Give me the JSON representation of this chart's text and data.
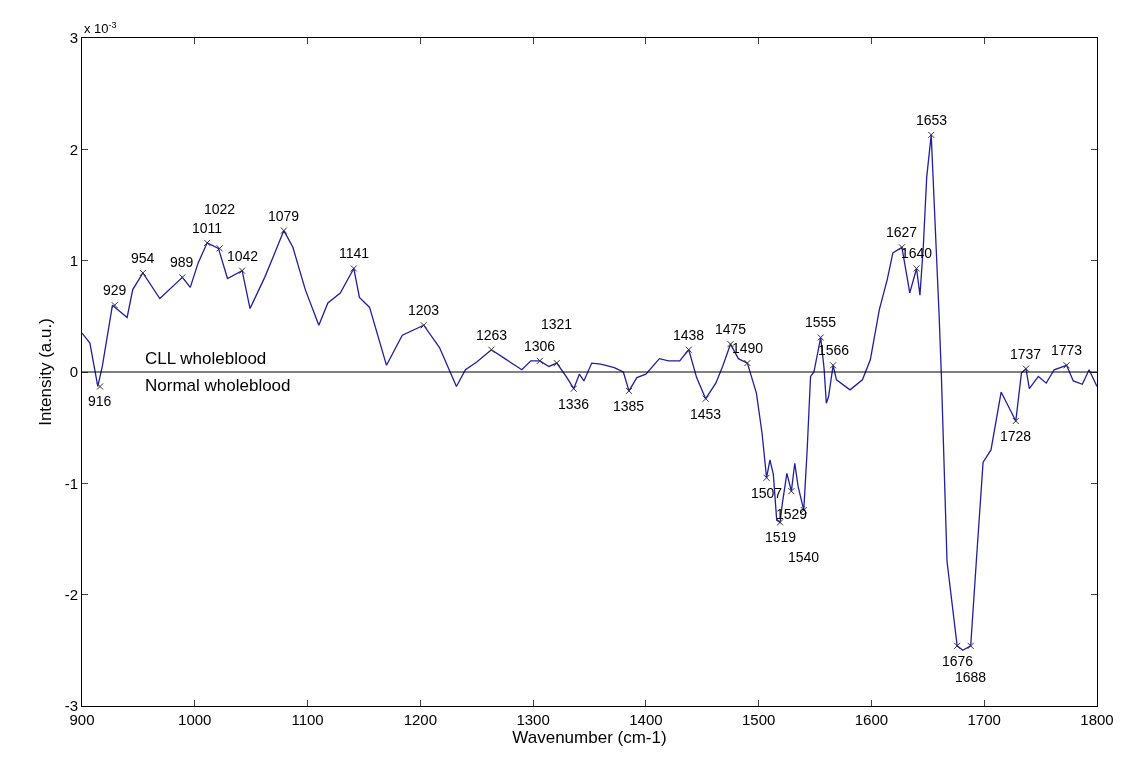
{
  "chart_data": {
    "type": "line",
    "xlabel": "Wavenumber (cm-1)",
    "ylabel": "Intensity (a.u.)",
    "xlim": [
      900,
      1800
    ],
    "xticks": [
      900,
      1000,
      1100,
      1200,
      1300,
      1400,
      1500,
      1600,
      1700,
      1800
    ],
    "ylim": [
      -3,
      3
    ],
    "yticks": [
      -3,
      -2,
      -1,
      0,
      1,
      2,
      3
    ],
    "series": [
      {
        "color": "#1f1f9f",
        "x": [
          900,
          907,
          914,
          918,
          927,
          940,
          945,
          954,
          969,
          989,
          996,
          1003,
          1011,
          1021,
          1029,
          1042,
          1049,
          1062,
          1071,
          1079,
          1087,
          1098,
          1110,
          1118,
          1129,
          1141,
          1146,
          1155,
          1170,
          1184,
          1203,
          1217,
          1232,
          1240,
          1250,
          1263,
          1275,
          1290,
          1298,
          1306,
          1314,
          1321,
          1330,
          1336,
          1341,
          1345,
          1352,
          1360,
          1372,
          1380,
          1385,
          1392,
          1400,
          1412,
          1420,
          1430,
          1438,
          1445,
          1453,
          1462,
          1468,
          1475,
          1482,
          1490,
          1498,
          1503,
          1507,
          1510,
          1513,
          1516,
          1519,
          1521,
          1525,
          1529,
          1532,
          1535,
          1540,
          1543,
          1546,
          1549,
          1555,
          1558,
          1560,
          1562,
          1566,
          1569,
          1581,
          1592,
          1599,
          1607,
          1614,
          1619,
          1627,
          1634,
          1640,
          1643,
          1646,
          1649,
          1653,
          1660,
          1662,
          1667,
          1676,
          1681,
          1688,
          1693,
          1699,
          1706,
          1715,
          1728,
          1733,
          1737,
          1740,
          1748,
          1755,
          1762,
          1773,
          1779,
          1787,
          1793,
          1800
        ],
        "values": [
          0.35,
          0.26,
          -0.13,
          0.05,
          0.6,
          0.49,
          0.74,
          0.89,
          0.66,
          0.85,
          0.76,
          0.98,
          1.16,
          1.11,
          0.84,
          0.91,
          0.57,
          0.85,
          1.07,
          1.27,
          1.12,
          0.74,
          0.42,
          0.62,
          0.71,
          0.93,
          0.67,
          0.58,
          0.06,
          0.33,
          0.42,
          0.22,
          -0.13,
          0.02,
          0.09,
          0.2,
          0.12,
          0.02,
          0.1,
          0.1,
          0.05,
          0.08,
          -0.05,
          -0.15,
          -0.02,
          -0.08,
          0.08,
          0.07,
          0.04,
          0.0,
          -0.17,
          -0.05,
          -0.02,
          0.12,
          0.1,
          0.1,
          0.2,
          -0.05,
          -0.24,
          -0.1,
          0.05,
          0.25,
          0.12,
          0.08,
          -0.19,
          -0.55,
          -0.95,
          -0.79,
          -0.92,
          -1.33,
          -1.35,
          -1.18,
          -0.91,
          -1.07,
          -0.82,
          -1.03,
          -1.24,
          -0.7,
          -0.04,
          0.0,
          0.31,
          0.03,
          -0.28,
          -0.22,
          0.06,
          -0.07,
          -0.16,
          -0.07,
          0.11,
          0.56,
          0.83,
          1.07,
          1.12,
          0.71,
          0.93,
          0.69,
          1.13,
          1.75,
          2.13,
          0.51,
          -0.03,
          -1.7,
          -2.46,
          -2.5,
          -2.46,
          -1.7,
          -0.81,
          -0.7,
          -0.18,
          -0.44,
          -0.01,
          0.03,
          -0.15,
          -0.04,
          -0.1,
          0.02,
          0.06,
          -0.08,
          -0.11,
          0.02,
          -0.13
        ]
      }
    ],
    "ref_lines": [
      {
        "axis": "y",
        "value": 0,
        "color": "#000000"
      }
    ],
    "annotations": [
      "x 10$^{-3}$",
      "CLL wholeblood",
      "Normal wholeblood",
      {
        "text": "916",
        "x": 916,
        "y": -0.13
      },
      {
        "text": "929",
        "x": 929,
        "y": 0.6
      },
      {
        "text": "954",
        "x": 954,
        "y": 0.89
      },
      {
        "text": "989",
        "x": 989,
        "y": 0.85
      },
      {
        "text": "1011",
        "x": 1011,
        "y": 1.16
      },
      {
        "text": "1022",
        "x": 1022,
        "y": 1.11
      },
      {
        "text": "1042",
        "x": 1042,
        "y": 0.91
      },
      {
        "text": "1079",
        "x": 1079,
        "y": 1.27
      },
      {
        "text": "1141",
        "x": 1141,
        "y": 0.93
      },
      {
        "text": "1203",
        "x": 1203,
        "y": 0.42
      },
      {
        "text": "1263",
        "x": 1263,
        "y": 0.2
      },
      {
        "text": "1306",
        "x": 1306,
        "y": 0.1
      },
      {
        "text": "1321",
        "x": 1321,
        "y": 0.08
      },
      {
        "text": "1336",
        "x": 1336,
        "y": -0.15
      },
      {
        "text": "1385",
        "x": 1385,
        "y": -0.17
      },
      {
        "text": "1438",
        "x": 1438,
        "y": 0.2
      },
      {
        "text": "1453",
        "x": 1453,
        "y": -0.24
      },
      {
        "text": "1475",
        "x": 1475,
        "y": 0.25
      },
      {
        "text": "1490",
        "x": 1490,
        "y": 0.08
      },
      {
        "text": "1507",
        "x": 1507,
        "y": -0.95
      },
      {
        "text": "1519",
        "x": 1519,
        "y": -1.35
      },
      {
        "text": "1529",
        "x": 1529,
        "y": -1.07
      },
      {
        "text": "1540",
        "x": 1540,
        "y": -1.24
      },
      {
        "text": "1555",
        "x": 1555,
        "y": 0.31
      },
      {
        "text": "1566",
        "x": 1566,
        "y": 0.06
      },
      {
        "text": "1627",
        "x": 1627,
        "y": 1.12
      },
      {
        "text": "1640",
        "x": 1640,
        "y": 0.93
      },
      {
        "text": "1653",
        "x": 1653,
        "y": 2.13
      },
      {
        "text": "1676",
        "x": 1676,
        "y": -2.46
      },
      {
        "text": "1688",
        "x": 1688,
        "y": -2.46
      },
      {
        "text": "1728",
        "x": 1728,
        "y": -0.44
      },
      {
        "text": "1737",
        "x": 1737,
        "y": 0.03
      },
      {
        "text": "1773",
        "x": 1773,
        "y": 0.06
      }
    ]
  }
}
